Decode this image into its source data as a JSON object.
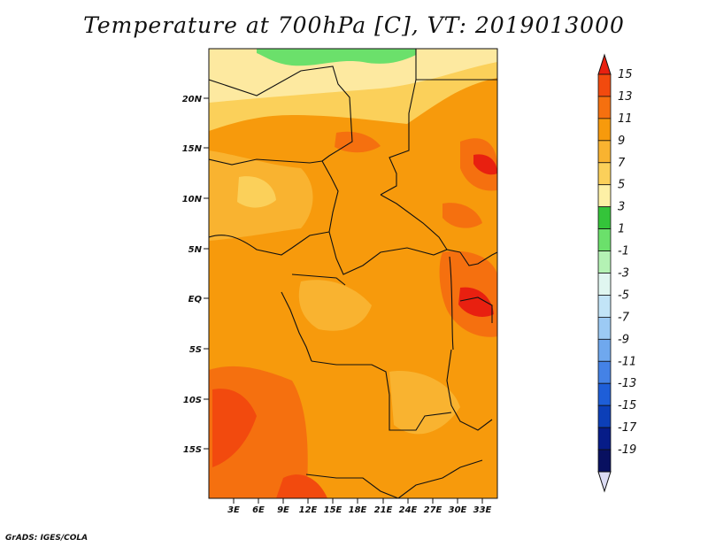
{
  "title": "Temperature at 700hPa [C], VT: 2019013000",
  "footer": "GrADS: IGES/COLA",
  "map": {
    "lat_labels": [
      "20N",
      "15N",
      "10N",
      "5N",
      "EQ",
      "5S",
      "10S",
      "15S"
    ],
    "lon_labels": [
      "3E",
      "6E",
      "9E",
      "12E",
      "15E",
      "18E",
      "21E",
      "24E",
      "27E",
      "30E",
      "33E"
    ]
  },
  "colorbar": {
    "labels": [
      "15",
      "13",
      "11",
      "9",
      "7",
      "5",
      "3",
      "1",
      "-1",
      "-3",
      "-5",
      "-7",
      "-9",
      "-11",
      "-13",
      "-15",
      "-17",
      "-19"
    ],
    "colors": [
      "#e82010",
      "#f24a0e",
      "#f5700f",
      "#f79a0c",
      "#f9b330",
      "#fbd05a",
      "#fdf0a6",
      "#34c43a",
      "#6be06b",
      "#b4f2b4",
      "#e0f6f0",
      "#c2e4f7",
      "#9ccaf4",
      "#6fa8ee",
      "#4482e6",
      "#1e5ed8",
      "#0c3fb8",
      "#061c88",
      "#081060",
      "#dcdcf4"
    ]
  }
}
